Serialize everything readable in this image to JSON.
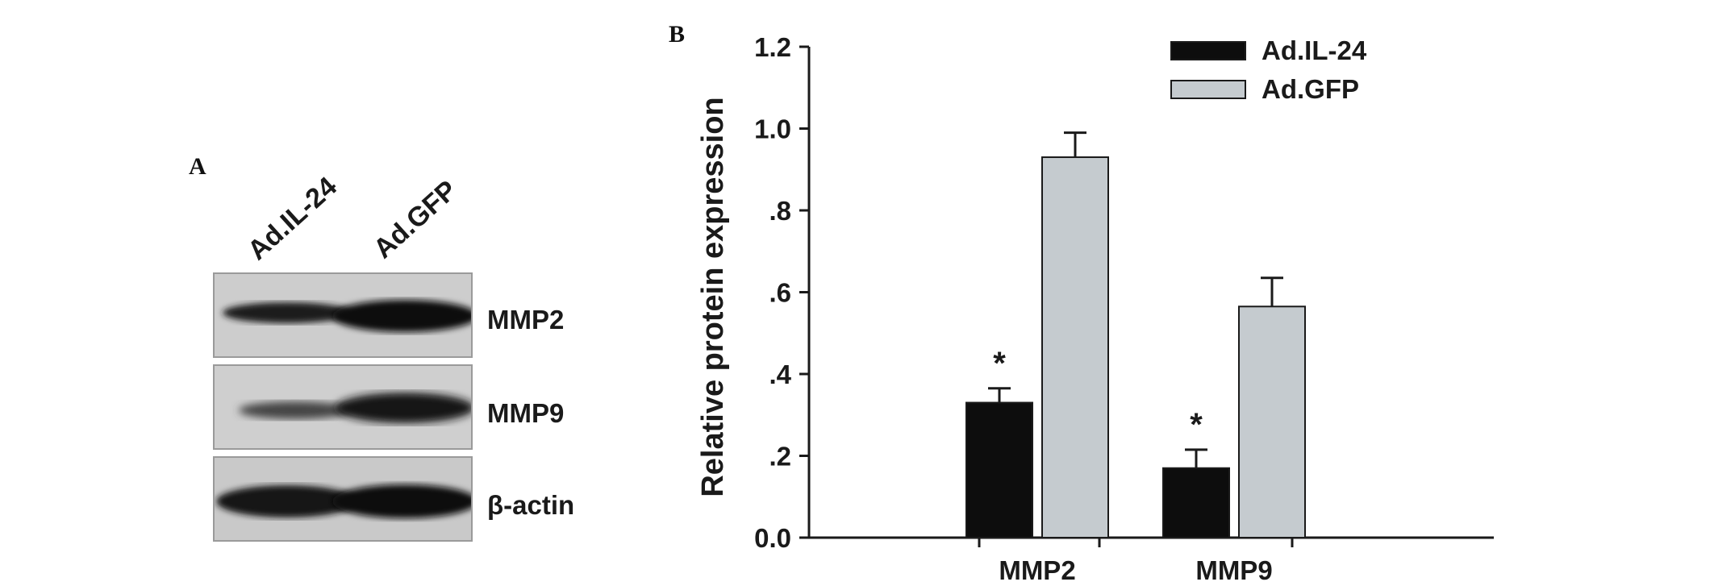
{
  "panels": {
    "a_label": "A",
    "b_label": "B"
  },
  "blot": {
    "lanes": [
      "Ad.IL-24",
      "Ad.GFP"
    ],
    "proteins": [
      "MMP2",
      "MMP9",
      "β-actin"
    ]
  },
  "colors": {
    "ad_il24": "#0d0d0d",
    "ad_gfp": "#c5cbcf"
  },
  "chart_data": {
    "type": "bar",
    "categories": [
      "MMP2",
      "MMP9"
    ],
    "series": [
      {
        "name": "Ad.IL-24",
        "values": [
          0.33,
          0.17
        ],
        "errors": [
          0.035,
          0.045
        ]
      },
      {
        "name": "Ad.GFP",
        "values": [
          0.93,
          0.565
        ],
        "errors": [
          0.06,
          0.07
        ]
      }
    ],
    "annotations": [
      "*",
      "*"
    ],
    "ylabel": "Relative protein expression",
    "xlabel": "",
    "ylim": [
      0,
      1.2
    ],
    "yticks": [
      "0.0",
      ".2",
      ".4",
      ".6",
      ".8",
      "1.0",
      "1.2"
    ],
    "legend_position": "top-right",
    "grid": false
  }
}
